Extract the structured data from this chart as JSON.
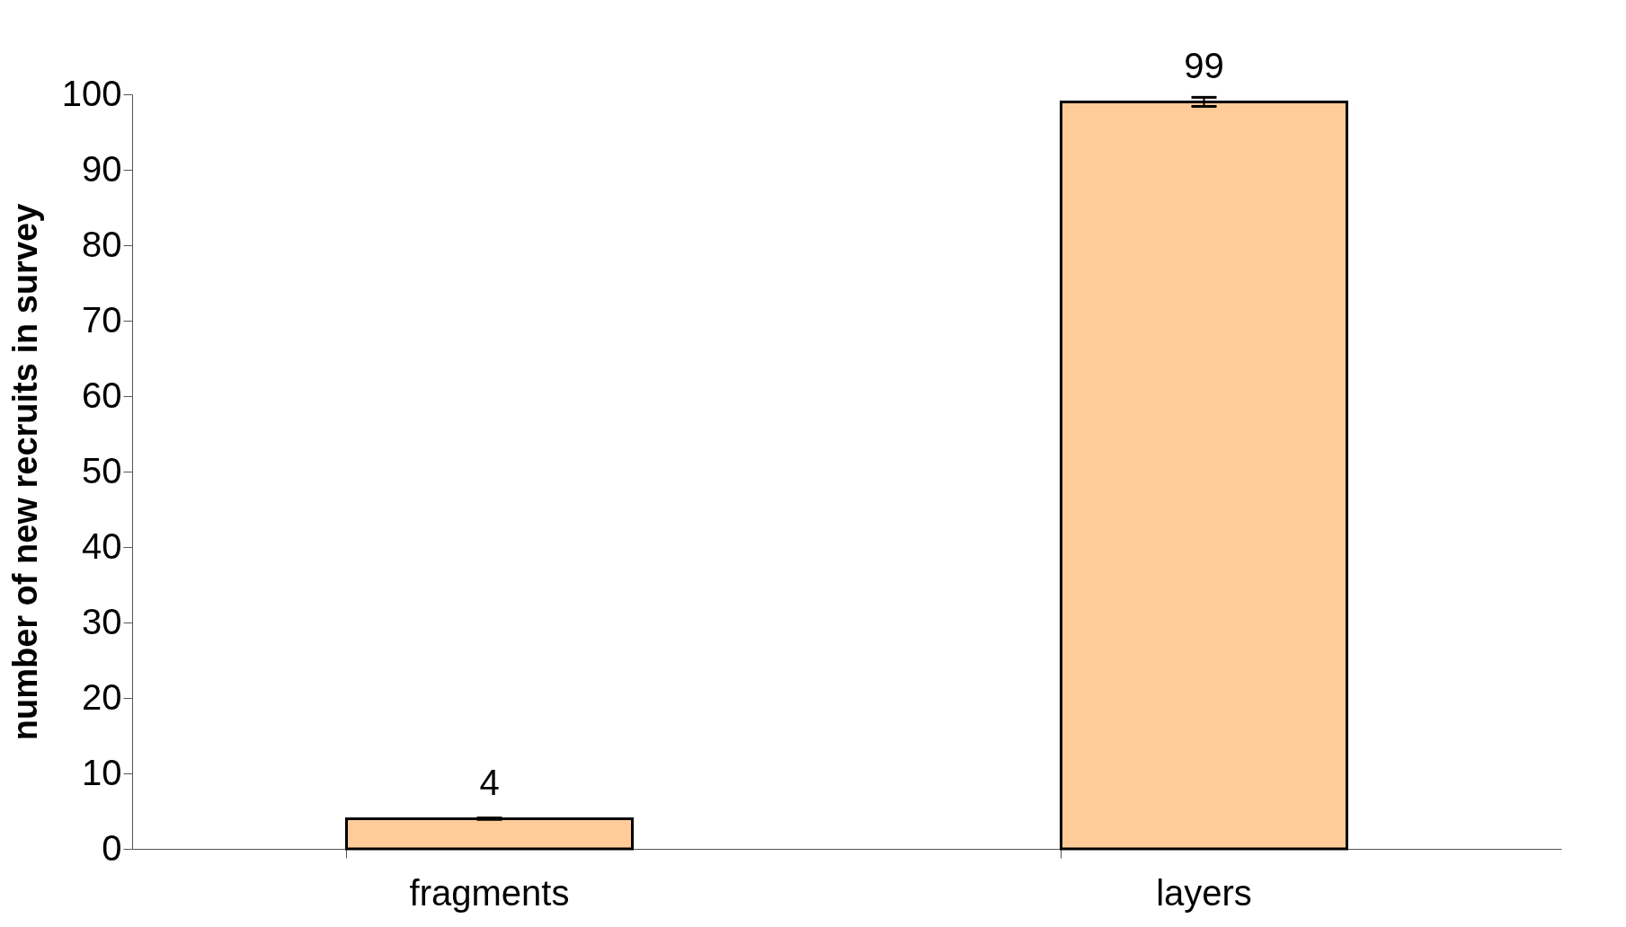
{
  "chart_data": {
    "type": "bar",
    "ylabel": "number of new recruits in  survey",
    "categories": [
      "fragments",
      "layers"
    ],
    "values": [
      4,
      99
    ],
    "errors": [
      0.1,
      0.6
    ],
    "color": "#ffcc99",
    "ylim": [
      0,
      100
    ],
    "yticks": [
      0,
      10,
      20,
      30,
      40,
      50,
      60,
      70,
      80,
      90,
      100
    ],
    "data_labels": true,
    "grid": false
  }
}
